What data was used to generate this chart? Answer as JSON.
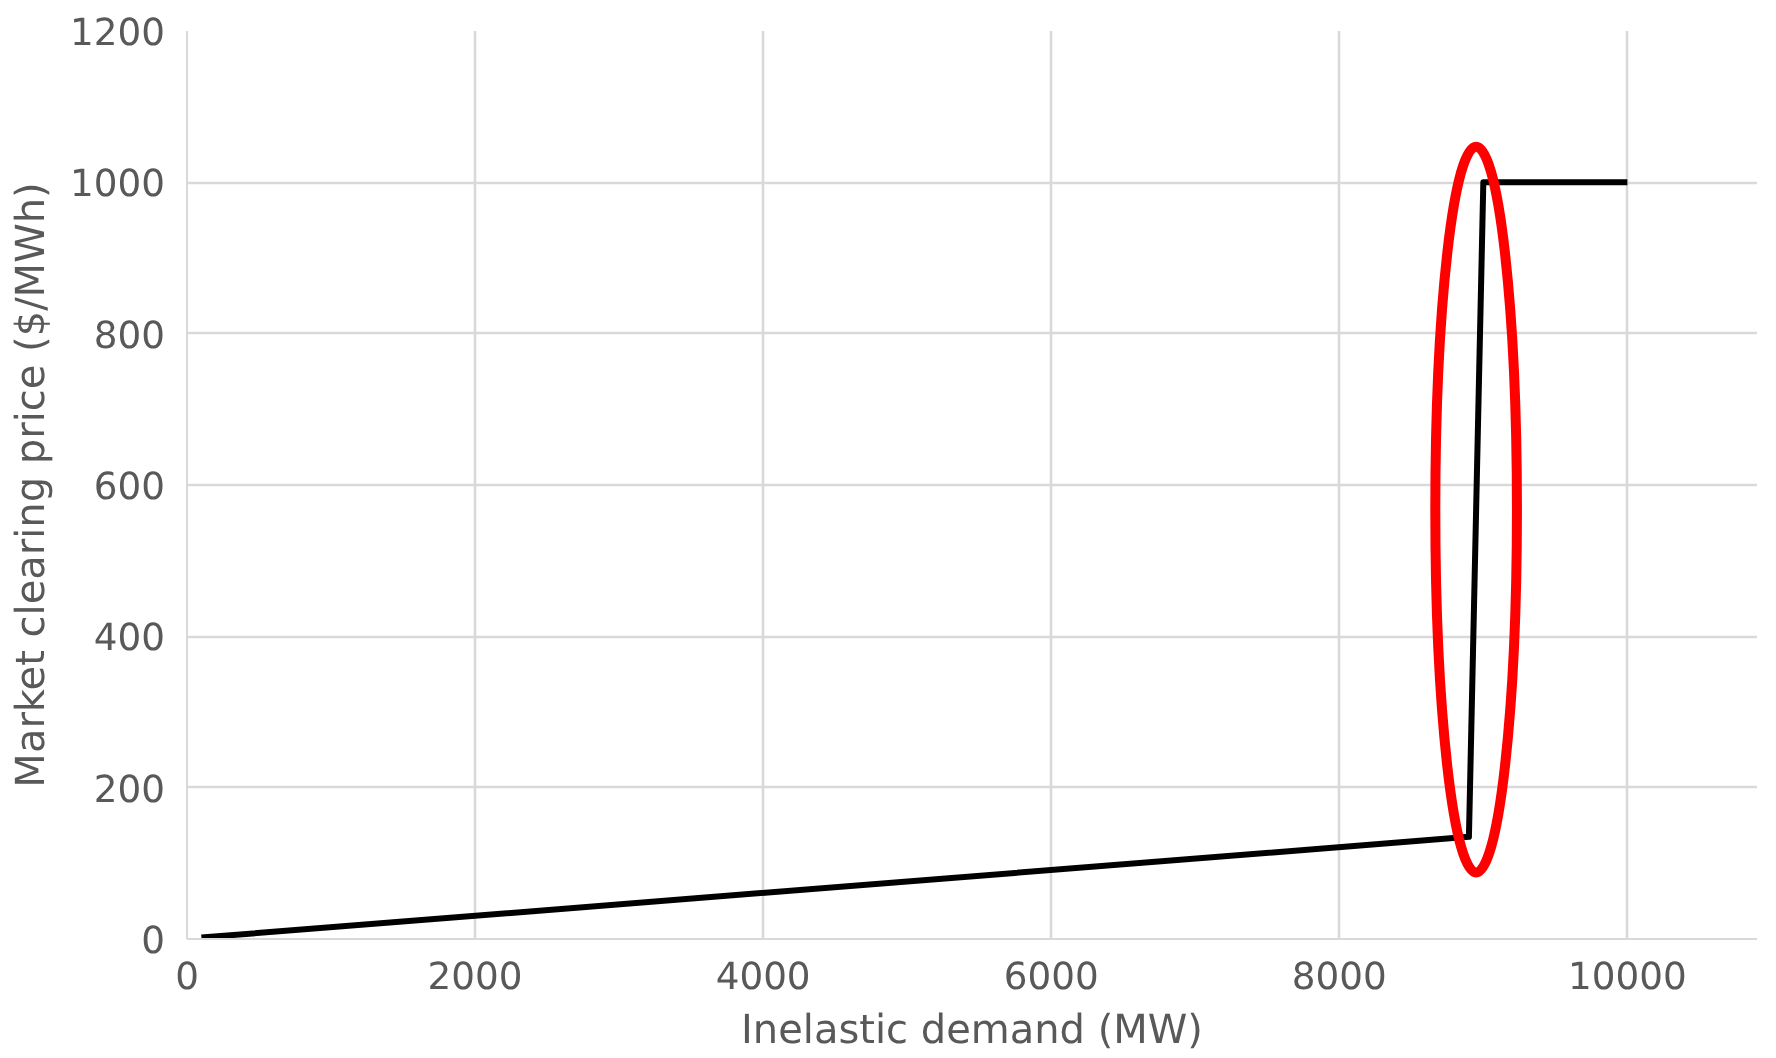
{
  "chart_data": {
    "type": "line",
    "xlabel": "Inelastic demand (MW)",
    "ylabel": "Market clearing price ($/MWh)",
    "x": [
      100,
      8900,
      9000,
      10000
    ],
    "series": [
      {
        "color": "#000000",
        "values": [
          2,
          135,
          1000,
          1000
        ]
      }
    ],
    "xlim": [
      0,
      10900
    ],
    "xticks": [
      0,
      2000,
      4000,
      6000,
      8000,
      10000
    ],
    "ylim": [
      0,
      1200
    ],
    "yticks": [
      0,
      200,
      400,
      600,
      800,
      1000,
      1200
    ],
    "grid": true,
    "marker": "none",
    "line_style": "solid"
  }
}
